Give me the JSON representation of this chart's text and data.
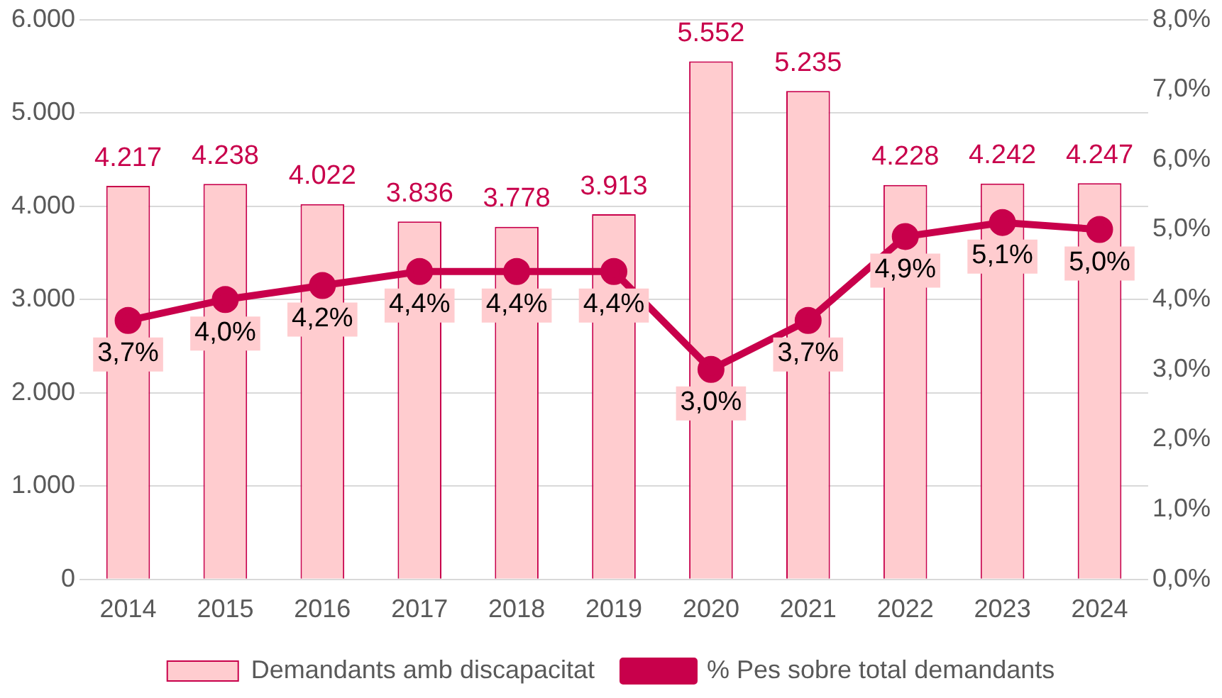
{
  "chart_data": {
    "type": "bar",
    "categories": [
      "2014",
      "2015",
      "2016",
      "2017",
      "2018",
      "2019",
      "2020",
      "2021",
      "2022",
      "2023",
      "2024"
    ],
    "series": [
      {
        "name": "Demandants amb discapacitat",
        "color": "#ffcccf",
        "values": [
          4217,
          4238,
          4022,
          3836,
          3778,
          3913,
          5552,
          5235,
          4228,
          4242,
          4247
        ],
        "value_labels": [
          "4.217",
          "4.238",
          "4.022",
          "3.836",
          "3.778",
          "3.913",
          "5.552",
          "5.235",
          "4.228",
          "4.242",
          "4.247"
        ]
      },
      {
        "name": "% Pes sobre total demandants",
        "type": "line",
        "axis": "y2",
        "color": "#c8004b",
        "values": [
          3.7,
          4.0,
          4.2,
          4.4,
          4.4,
          4.4,
          3.0,
          3.7,
          4.9,
          5.1,
          5.0
        ],
        "value_labels": [
          "3,7%",
          "4,0%",
          "4,2%",
          "4,4%",
          "4,4%",
          "4,4%",
          "3,0%",
          "3,7%",
          "4,9%",
          "5,1%",
          "5,0%"
        ]
      }
    ],
    "ylim": [
      0,
      6000
    ],
    "yticks": [
      {
        "value": 0,
        "label": "0"
      },
      {
        "value": 1000,
        "label": "1.000"
      },
      {
        "value": 2000,
        "label": "2.000"
      },
      {
        "value": 3000,
        "label": "3.000"
      },
      {
        "value": 4000,
        "label": "4.000"
      },
      {
        "value": 5000,
        "label": "5.000"
      },
      {
        "value": 6000,
        "label": "6.000"
      }
    ],
    "y2lim": [
      0,
      8
    ],
    "y2ticks": [
      {
        "value": 0,
        "label": "0,0%"
      },
      {
        "value": 1,
        "label": "1,0%"
      },
      {
        "value": 2,
        "label": "2,0%"
      },
      {
        "value": 3,
        "label": "3,0%"
      },
      {
        "value": 4,
        "label": "4,0%"
      },
      {
        "value": 5,
        "label": "5,0%"
      },
      {
        "value": 6,
        "label": "6,0%"
      },
      {
        "value": 7,
        "label": "7,0%"
      },
      {
        "value": 8,
        "label": "8,0%"
      }
    ],
    "grid": "y",
    "legend": "bottom",
    "marker": "circle",
    "line_style": "solid"
  }
}
